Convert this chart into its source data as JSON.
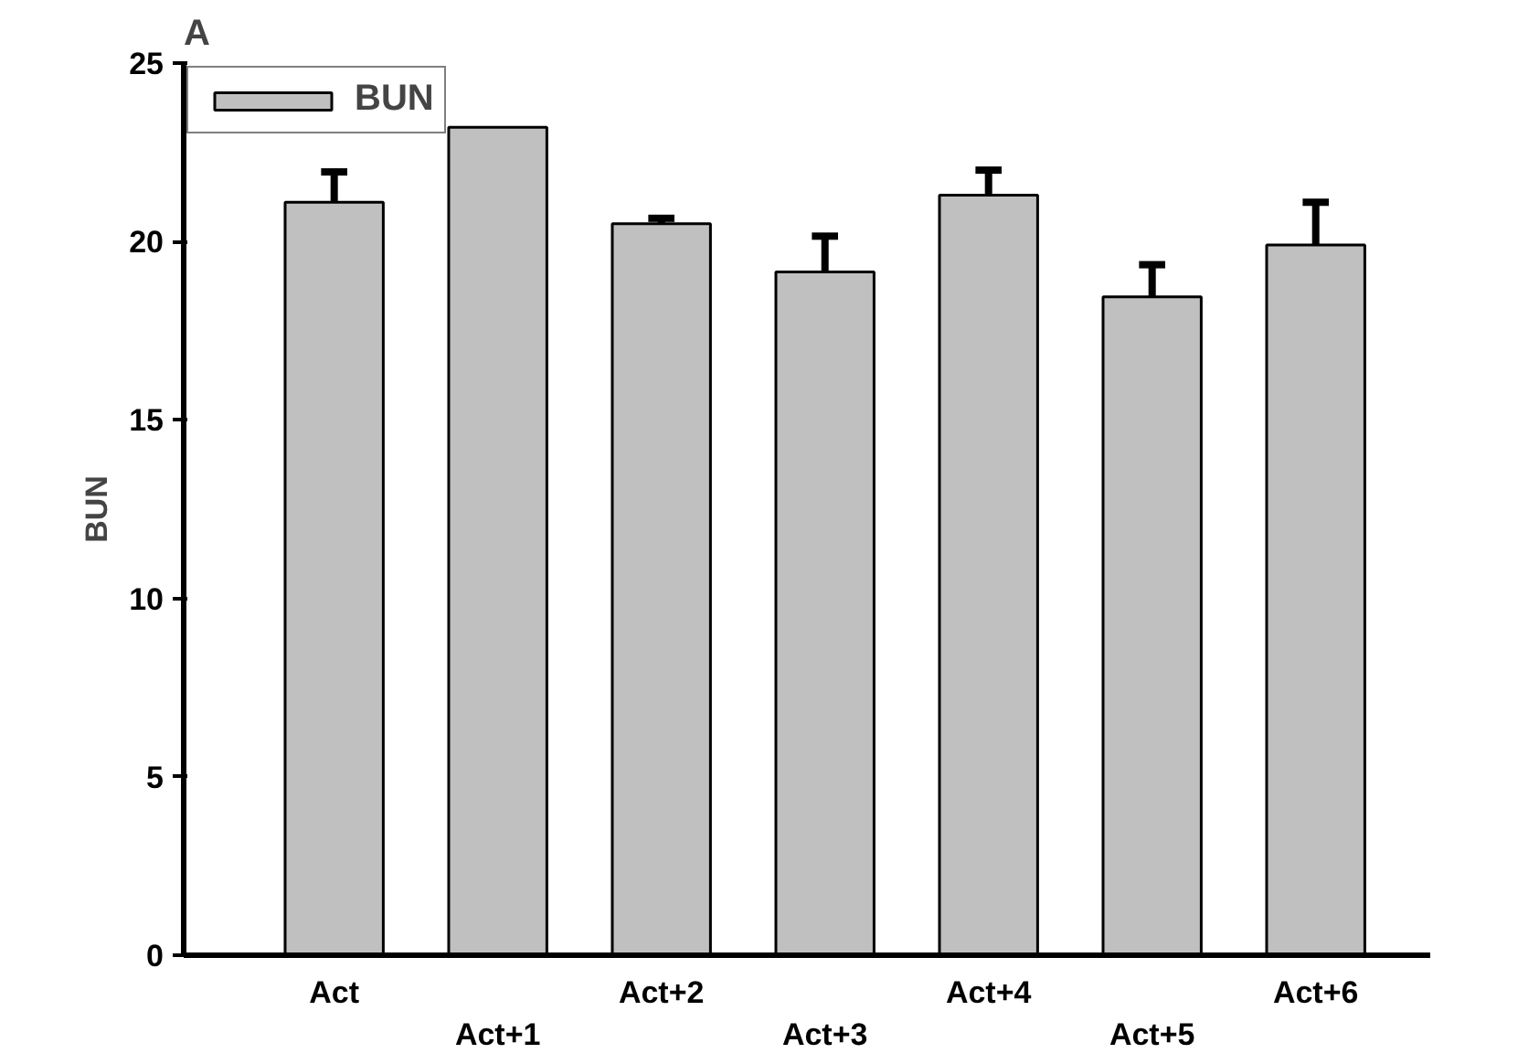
{
  "chart_data": {
    "type": "bar",
    "title": "A",
    "ylabel": "BUN",
    "categories": [
      "Act",
      "Act+1",
      "Act+2",
      "Act+3",
      "Act+4",
      "Act+5",
      "Act+6"
    ],
    "series": [
      {
        "name": "BUN",
        "color": "#c0c0c0",
        "values": [
          21.1,
          23.2,
          20.5,
          19.15,
          21.3,
          18.45,
          19.9
        ],
        "errors": [
          [
            21.1,
            21.95
          ],
          null,
          [
            20.5,
            20.65
          ],
          [
            19.15,
            20.15
          ],
          [
            21.3,
            22.0
          ],
          [
            18.45,
            19.35
          ],
          [
            19.9,
            21.1
          ]
        ]
      }
    ],
    "ylim": [
      0,
      25
    ],
    "yticks": [
      0,
      5,
      10,
      15,
      20,
      25
    ],
    "grid": false,
    "legend": "top left"
  }
}
